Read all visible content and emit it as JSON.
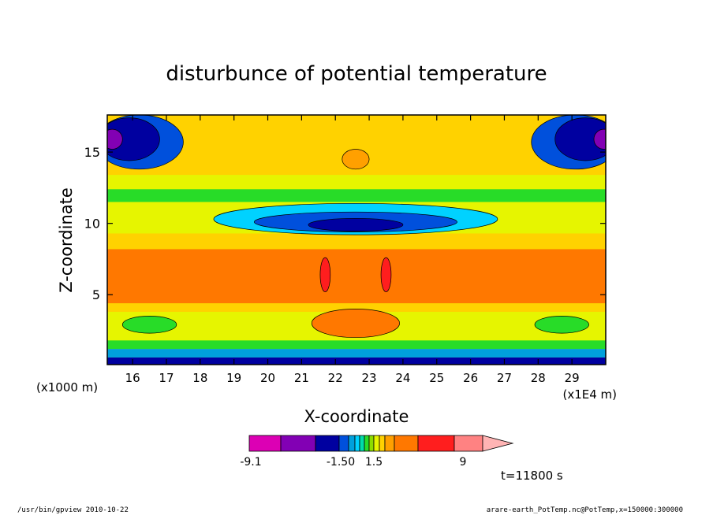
{
  "chart_data": {
    "type": "heatmap",
    "title": "disturbunce of potential temperature",
    "xlabel": "X-coordinate",
    "ylabel": "Z-coordinate",
    "x_unit": "(x1E4 m)",
    "y_unit": "(x1000 m)",
    "xlim": [
      15.25,
      30.0
    ],
    "ylim": [
      0.1,
      17.6
    ],
    "x_ticks": [
      "16",
      "17",
      "18",
      "19",
      "20",
      "21",
      "22",
      "23",
      "24",
      "25",
      "26",
      "27",
      "28",
      "29"
    ],
    "y_ticks": [
      "5",
      "10",
      "15"
    ],
    "colorbar": {
      "labels": [
        "-9.1",
        "-1.50",
        "1.5",
        "9"
      ],
      "colors": [
        "#dc00b4",
        "#8200b4",
        "#0000a0",
        "#0050dc",
        "#00a0dc",
        "#00d2ff",
        "#00dcaa",
        "#28dc28",
        "#8cdc00",
        "#e6f500",
        "#ffd200",
        "#ffa000",
        "#ff7800",
        "#ff1e1e",
        "#ff8282",
        "#ffb4b4"
      ]
    },
    "annotation": "t=11800 s",
    "bands": [
      {
        "z": [
          0.1,
          0.6
        ],
        "color": "#0000a0"
      },
      {
        "z": [
          0.6,
          1.2
        ],
        "color": "#00a0dc"
      },
      {
        "z": [
          1.2,
          1.8
        ],
        "color": "#28dc28"
      },
      {
        "z": [
          1.8,
          3.8
        ],
        "color": "#e6f500"
      },
      {
        "z": [
          3.8,
          4.4
        ],
        "color": "#ffd200"
      },
      {
        "z": [
          4.4,
          8.2
        ],
        "color": "#ff7800"
      },
      {
        "z": [
          8.2,
          9.3
        ],
        "color": "#ffd200"
      },
      {
        "z": [
          9.3,
          11.5
        ],
        "color": "#e6f500"
      },
      {
        "z": [
          11.5,
          12.4
        ],
        "color": "#28dc28"
      },
      {
        "z": [
          12.4,
          13.4
        ],
        "color": "#e6f500"
      },
      {
        "z": [
          13.4,
          17.6
        ],
        "color": "#ffd200"
      }
    ],
    "features": [
      {
        "x": 16.2,
        "z": 15.7,
        "rx": 1.3,
        "rz": 1.9,
        "color": "#0050dc"
      },
      {
        "x": 29.1,
        "z": 15.7,
        "rx": 1.3,
        "rz": 1.9,
        "color": "#0050dc"
      },
      {
        "x": 15.9,
        "z": 15.9,
        "rx": 0.9,
        "rz": 1.5,
        "color": "#0000a0"
      },
      {
        "x": 29.4,
        "z": 15.9,
        "rx": 0.9,
        "rz": 1.5,
        "color": "#0000a0"
      },
      {
        "x": 15.4,
        "z": 15.9,
        "rx": 0.3,
        "rz": 0.7,
        "color": "#8200b4"
      },
      {
        "x": 29.95,
        "z": 15.9,
        "rx": 0.3,
        "rz": 0.7,
        "color": "#8200b4"
      },
      {
        "x": 22.6,
        "z": 10.3,
        "rx": 4.2,
        "rz": 1.1,
        "color": "#00d2ff"
      },
      {
        "x": 22.6,
        "z": 10.1,
        "rx": 3.0,
        "rz": 0.7,
        "color": "#0050dc"
      },
      {
        "x": 22.6,
        "z": 9.9,
        "rx": 1.4,
        "rz": 0.45,
        "color": "#0000a0"
      },
      {
        "x": 22.6,
        "z": 14.5,
        "rx": 0.4,
        "rz": 0.7,
        "color": "#ffa000"
      },
      {
        "x": 21.7,
        "z": 6.4,
        "rx": 0.15,
        "rz": 1.2,
        "color": "#ff1e1e"
      },
      {
        "x": 23.5,
        "z": 6.4,
        "rx": 0.15,
        "rz": 1.2,
        "color": "#ff1e1e"
      },
      {
        "x": 22.6,
        "z": 3.0,
        "rx": 1.3,
        "rz": 1.0,
        "color": "#ff7800"
      },
      {
        "x": 16.5,
        "z": 2.9,
        "rx": 0.8,
        "rz": 0.6,
        "color": "#28dc28"
      },
      {
        "x": 28.7,
        "z": 2.9,
        "rx": 0.8,
        "rz": 0.6,
        "color": "#28dc28"
      }
    ]
  },
  "footer": {
    "left": "/usr/bin/gpview   2010-10-22",
    "right": "arare-earth_PotTemp.nc@PotTemp,x=150000:300000"
  }
}
